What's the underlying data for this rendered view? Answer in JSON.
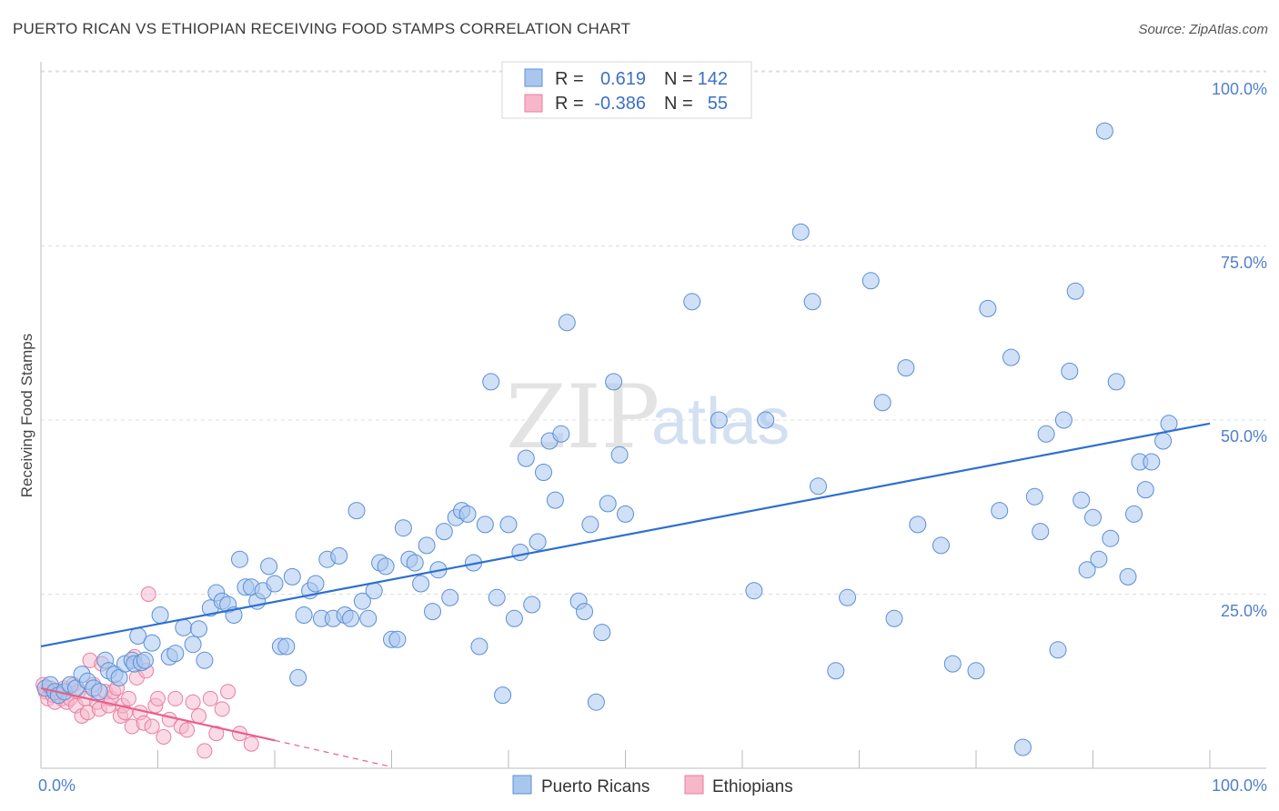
{
  "header": {
    "title": "PUERTO RICAN VS ETHIOPIAN RECEIVING FOOD STAMPS CORRELATION CHART",
    "source": "Source: ZipAtlas.com"
  },
  "watermark": {
    "zip": "ZIP",
    "atlas": "atlas"
  },
  "legend": {
    "rows": [
      {
        "r_label": "R =",
        "r_value": "0.619",
        "n_label": "N =",
        "n_value": "142"
      },
      {
        "r_label": "R =",
        "r_value": "-0.386",
        "n_label": "N =",
        "n_value": "55"
      }
    ]
  },
  "bottom_legend": [
    "Puerto Ricans",
    "Ethiopians"
  ],
  "colors": {
    "blue_fill": "#a9c7ee",
    "blue_stroke": "#5b8fd6",
    "blue_line": "#2e6fd1",
    "pink_fill": "#f6b7cb",
    "pink_stroke": "#e97ea0",
    "pink_line": "#e8608a",
    "grid": "#dddddd",
    "tick_text": "#4f7fcf"
  },
  "chart_data": {
    "type": "scatter",
    "title": "PUERTO RICAN VS ETHIOPIAN RECEIVING FOOD STAMPS CORRELATION CHART",
    "xlabel": "",
    "ylabel": "Receiving Food Stamps",
    "xlim": [
      0,
      100
    ],
    "ylim": [
      0,
      103
    ],
    "x_tick_labels": [
      "0.0%",
      "100.0%"
    ],
    "y_ticks": [
      25,
      50,
      75,
      100
    ],
    "y_tick_labels": [
      "25.0%",
      "50.0%",
      "75.0%",
      "100.0%"
    ],
    "series": [
      {
        "name": "Puerto Ricans",
        "R": 0.619,
        "N": 142,
        "trend": {
          "x": [
            0,
            100
          ],
          "y": [
            17.5,
            49.5
          ],
          "dashed_to": null
        },
        "points": [
          [
            0.4,
            11.5
          ],
          [
            0.8,
            12
          ],
          [
            1.2,
            11
          ],
          [
            1.5,
            10.5
          ],
          [
            2,
            11
          ],
          [
            2.5,
            12
          ],
          [
            3,
            11.5
          ],
          [
            3.5,
            13.5
          ],
          [
            4,
            12.5
          ],
          [
            4.5,
            11.5
          ],
          [
            5,
            11
          ],
          [
            5.5,
            15.5
          ],
          [
            5.8,
            14
          ],
          [
            6.3,
            13.5
          ],
          [
            6.7,
            13
          ],
          [
            7.2,
            15
          ],
          [
            7.8,
            15.5
          ],
          [
            8,
            15
          ],
          [
            8.3,
            19
          ],
          [
            8.6,
            15.2
          ],
          [
            8.9,
            15.5
          ],
          [
            9.5,
            18
          ],
          [
            10.2,
            22
          ],
          [
            11,
            16
          ],
          [
            11.5,
            16.5
          ],
          [
            12.2,
            20.2
          ],
          [
            13,
            17.8
          ],
          [
            13.5,
            20
          ],
          [
            14,
            15.5
          ],
          [
            14.5,
            23
          ],
          [
            15,
            25.2
          ],
          [
            15.5,
            24
          ],
          [
            16,
            23.5
          ],
          [
            16.5,
            22
          ],
          [
            17,
            30
          ],
          [
            17.5,
            26
          ],
          [
            18,
            26
          ],
          [
            18.5,
            24
          ],
          [
            19,
            25.5
          ],
          [
            19.5,
            29
          ],
          [
            20,
            26.5
          ],
          [
            20.5,
            17.5
          ],
          [
            21,
            17.5
          ],
          [
            21.5,
            27.5
          ],
          [
            22,
            13
          ],
          [
            22.5,
            22
          ],
          [
            23,
            25.5
          ],
          [
            23.5,
            26.5
          ],
          [
            24,
            21.5
          ],
          [
            24.5,
            30
          ],
          [
            25,
            21.5
          ],
          [
            25.5,
            30.5
          ],
          [
            26,
            22
          ],
          [
            26.5,
            21.5
          ],
          [
            27,
            37
          ],
          [
            27.5,
            24
          ],
          [
            28,
            21.5
          ],
          [
            28.5,
            25.5
          ],
          [
            29,
            29.5
          ],
          [
            29.5,
            29
          ],
          [
            30,
            18.5
          ],
          [
            30.5,
            18.5
          ],
          [
            31,
            34.5
          ],
          [
            31.5,
            30
          ],
          [
            32,
            29.5
          ],
          [
            32.5,
            26.5
          ],
          [
            33,
            32
          ],
          [
            33.5,
            22.5
          ],
          [
            34,
            28.5
          ],
          [
            34.5,
            34
          ],
          [
            35,
            24.5
          ],
          [
            35.5,
            36
          ],
          [
            36,
            37
          ],
          [
            36.5,
            36.5
          ],
          [
            37,
            29.5
          ],
          [
            37.5,
            17.5
          ],
          [
            38,
            35
          ],
          [
            38.5,
            55.5
          ],
          [
            39,
            24.5
          ],
          [
            39.5,
            10.5
          ],
          [
            40,
            35
          ],
          [
            40.5,
            21.5
          ],
          [
            41,
            31
          ],
          [
            41.5,
            44.5
          ],
          [
            42,
            23.5
          ],
          [
            42.5,
            32.5
          ],
          [
            43,
            42.5
          ],
          [
            43.5,
            47
          ],
          [
            44,
            38.5
          ],
          [
            44.5,
            48
          ],
          [
            45,
            64
          ],
          [
            46,
            24
          ],
          [
            46.5,
            22.5
          ],
          [
            47,
            35
          ],
          [
            47.5,
            9.5
          ],
          [
            48,
            19.5
          ],
          [
            48.5,
            38
          ],
          [
            49,
            55.5
          ],
          [
            49.5,
            45
          ],
          [
            50,
            36.5
          ],
          [
            55.7,
            67
          ],
          [
            58,
            50
          ],
          [
            61,
            25.5
          ],
          [
            62,
            50
          ],
          [
            65,
            77
          ],
          [
            66,
            67
          ],
          [
            66.5,
            40.5
          ],
          [
            68,
            14
          ],
          [
            69,
            24.5
          ],
          [
            71,
            70
          ],
          [
            72,
            52.5
          ],
          [
            73,
            21.5
          ],
          [
            74,
            57.5
          ],
          [
            75,
            35
          ],
          [
            77,
            32
          ],
          [
            78,
            15
          ],
          [
            80,
            14
          ],
          [
            81,
            66
          ],
          [
            82,
            37
          ],
          [
            83,
            59
          ],
          [
            84,
            3
          ],
          [
            85,
            39
          ],
          [
            85.5,
            34
          ],
          [
            86,
            48
          ],
          [
            87,
            17
          ],
          [
            87.5,
            50
          ],
          [
            88,
            57
          ],
          [
            88.5,
            68.5
          ],
          [
            89,
            38.5
          ],
          [
            89.5,
            28.5
          ],
          [
            90,
            36
          ],
          [
            90.5,
            30
          ],
          [
            91,
            91.5
          ],
          [
            91.5,
            33
          ],
          [
            92,
            55.5
          ],
          [
            93,
            27.5
          ],
          [
            93.5,
            36.5
          ],
          [
            94,
            44
          ],
          [
            94.5,
            40
          ],
          [
            95,
            44
          ],
          [
            96,
            47
          ],
          [
            96.5,
            49.5
          ]
        ]
      },
      {
        "name": "Ethiopians",
        "R": -0.386,
        "N": 55,
        "trend": {
          "x": [
            0,
            20,
            30
          ],
          "y": [
            11.5,
            4,
            0.2
          ],
          "dashed_from": 20
        },
        "points": [
          [
            0.2,
            12
          ],
          [
            0.4,
            11
          ],
          [
            0.6,
            10
          ],
          [
            0.8,
            11.5
          ],
          [
            1,
            10.5
          ],
          [
            1.2,
            9.5
          ],
          [
            1.5,
            11
          ],
          [
            1.8,
            10
          ],
          [
            2,
            11.5
          ],
          [
            2.2,
            9.5
          ],
          [
            2.5,
            10
          ],
          [
            2.8,
            12
          ],
          [
            3,
            9
          ],
          [
            3.2,
            11
          ],
          [
            3.5,
            7.5
          ],
          [
            3.8,
            10
          ],
          [
            4,
            8
          ],
          [
            4.2,
            15.5
          ],
          [
            4.5,
            12
          ],
          [
            4.8,
            9.5
          ],
          [
            5,
            8.5
          ],
          [
            5.2,
            15
          ],
          [
            5.5,
            11
          ],
          [
            5.8,
            9
          ],
          [
            6,
            10
          ],
          [
            6.2,
            11
          ],
          [
            6.5,
            11.5
          ],
          [
            6.8,
            7.5
          ],
          [
            7,
            9
          ],
          [
            7.2,
            8
          ],
          [
            7.5,
            10
          ],
          [
            7.8,
            6
          ],
          [
            8,
            16
          ],
          [
            8.2,
            13
          ],
          [
            8.5,
            8
          ],
          [
            8.8,
            6.5
          ],
          [
            9,
            14
          ],
          [
            9.2,
            25
          ],
          [
            9.5,
            6
          ],
          [
            9.8,
            9
          ],
          [
            10,
            10
          ],
          [
            10.5,
            4.5
          ],
          [
            11,
            7
          ],
          [
            11.5,
            10
          ],
          [
            12,
            6
          ],
          [
            12.5,
            5.5
          ],
          [
            13,
            9.5
          ],
          [
            13.5,
            7.5
          ],
          [
            14,
            2.5
          ],
          [
            14.5,
            10
          ],
          [
            15,
            5
          ],
          [
            15.5,
            8.5
          ],
          [
            16,
            11
          ],
          [
            17,
            5
          ],
          [
            18,
            3.5
          ]
        ]
      }
    ]
  }
}
